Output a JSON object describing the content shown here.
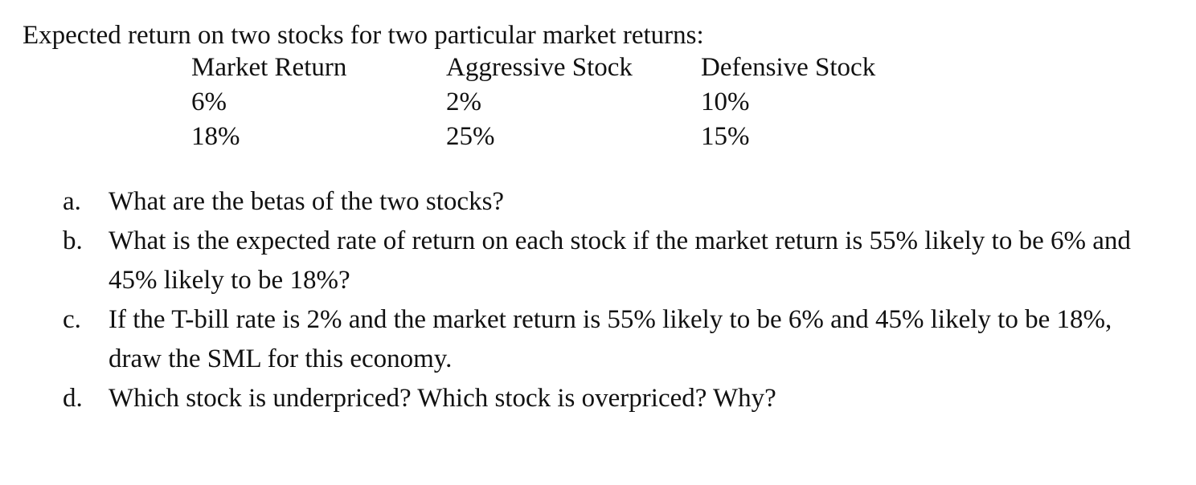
{
  "intro": "Expected return on two stocks for two particular market returns:",
  "table": {
    "headers": [
      "Market Return",
      "Aggressive Stock",
      "Defensive Stock"
    ],
    "rows": [
      [
        "6%",
        "2%",
        "10%"
      ],
      [
        "18%",
        "25%",
        "15%"
      ]
    ]
  },
  "questions": [
    {
      "marker": "a.",
      "text": "What are the betas of the two stocks?"
    },
    {
      "marker": "b.",
      "text": "What is the expected rate of return on each stock if the market return is 55% likely to be 6% and 45% likely to be 18%?"
    },
    {
      "marker": "c.",
      "text": "If the T-bill rate is 2% and the market return is 55% likely to be 6% and 45% likely to be 18%, draw the SML for this economy."
    },
    {
      "marker": "d.",
      "text": "Which stock is underpriced? Which stock is overpriced? Why?"
    }
  ]
}
